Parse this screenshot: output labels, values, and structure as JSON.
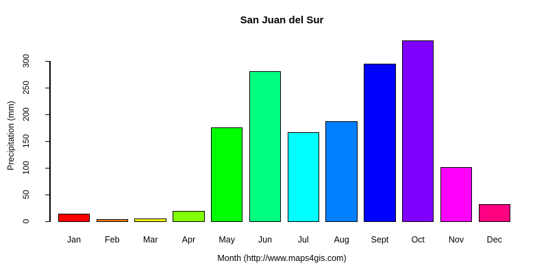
{
  "chart_data": {
    "type": "bar",
    "title": "San Juan del Sur",
    "xlabel": "Month (http://www.maps4gis.com)",
    "ylabel": "Precipitation (mm)",
    "categories": [
      "Jan",
      "Feb",
      "Mar",
      "Apr",
      "May",
      "Jun",
      "Jul",
      "Aug",
      "Sept",
      "Oct",
      "Nov",
      "Dec"
    ],
    "values": [
      11,
      1,
      3,
      17,
      173,
      278,
      164,
      184,
      292,
      336,
      99,
      29
    ],
    "bar_colors": [
      "#FF0000",
      "#FF8000",
      "#FFFF00",
      "#80FF00",
      "#00FF00",
      "#00FF80",
      "#00FFFF",
      "#0080FF",
      "#0000FF",
      "#8000FF",
      "#FF00FF",
      "#FF0080"
    ],
    "bar_border_color": "#000000",
    "axis_color": "#000000",
    "background_color": "#FFFFFF",
    "yticks": [
      0,
      50,
      100,
      150,
      200,
      250,
      300
    ],
    "ylim": [
      0,
      300
    ],
    "grid": false,
    "legend_position": "none"
  }
}
